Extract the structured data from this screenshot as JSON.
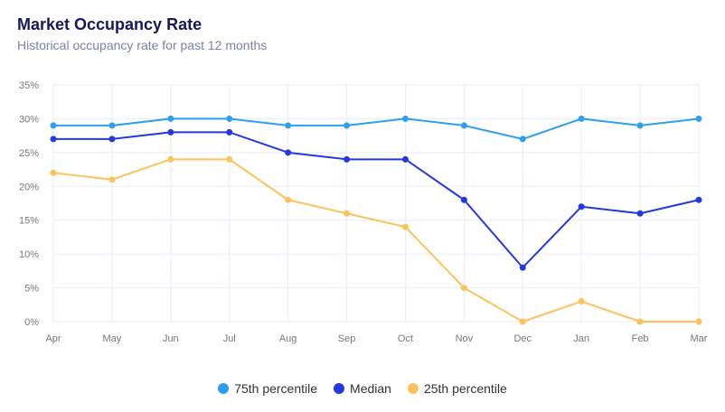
{
  "chart_data": {
    "type": "line",
    "title": "Market Occupancy Rate",
    "subtitle": "Historical occupancy rate for past 12 months",
    "categories": [
      "Apr",
      "May",
      "Jun",
      "Jul",
      "Aug",
      "Sep",
      "Oct",
      "Nov",
      "Dec",
      "Jan",
      "Feb",
      "Mar"
    ],
    "yticks": [
      "0%",
      "5%",
      "10%",
      "15%",
      "20%",
      "25%",
      "30%",
      "35%"
    ],
    "ylim": [
      0,
      35
    ],
    "grid": true,
    "legend_position": "bottom",
    "series": [
      {
        "name": "75th percentile",
        "color": "#2e9ef0",
        "values": [
          29,
          29,
          30,
          30,
          29,
          29,
          30,
          29,
          27,
          30,
          29,
          30
        ]
      },
      {
        "name": "Median",
        "color": "#2339e0",
        "values": [
          27,
          27,
          28,
          28,
          25,
          24,
          24,
          18,
          8,
          17,
          16,
          18
        ]
      },
      {
        "name": "25th percentile",
        "color": "#fdc25a",
        "values": [
          22,
          21,
          24,
          24,
          18,
          16,
          14,
          5,
          0,
          3,
          0,
          0
        ]
      }
    ]
  }
}
